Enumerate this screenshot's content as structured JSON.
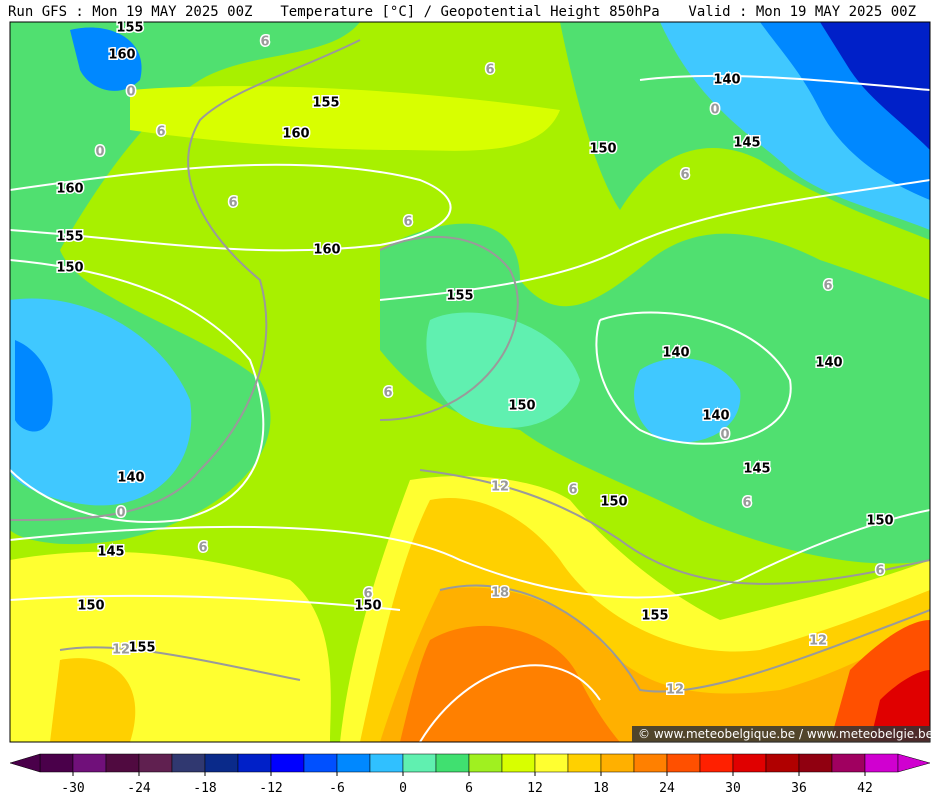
{
  "header": {
    "left": "Run GFS : Mon 19 MAY 2025 00Z",
    "center": "Temperature [°C] / Geopotential Height 850hPa",
    "right": "Valid : Mon 19 MAY 2025 00Z"
  },
  "map": {
    "height_contour_labels": [
      155,
      160,
      155,
      160,
      160,
      155,
      150,
      160,
      155,
      150,
      140,
      145,
      140,
      140,
      140,
      150,
      145,
      150,
      150,
      140,
      145,
      150,
      150,
      155,
      155
    ],
    "temperature_contour_labels": [
      6,
      6,
      0,
      6,
      0,
      0,
      6,
      6,
      6,
      6,
      6,
      0,
      12,
      6,
      6,
      0,
      6,
      6,
      6,
      18,
      12,
      12,
      12
    ],
    "watermark": "© www.meteobelgique.be / www.meteobelgie.be"
  },
  "legend": {
    "bins": [
      -33,
      -30,
      -27,
      -24,
      -21,
      -18,
      -15,
      -12,
      -9,
      -6,
      -3,
      0,
      3,
      6,
      9,
      12,
      15,
      18,
      21,
      24,
      27,
      30,
      33,
      36,
      39,
      42,
      45
    ],
    "colors": [
      "#4a004a",
      "#70107a",
      "#500a40",
      "#602050",
      "#303870",
      "#0a2a8a",
      "#0020c8",
      "#0000ff",
      "#0050ff",
      "#0088ff",
      "#30c0ff",
      "#60f0b0",
      "#40e070",
      "#a0f020",
      "#d8ff00",
      "#ffff30",
      "#ffd000",
      "#ffb000",
      "#ff8000",
      "#ff5000",
      "#ff2000",
      "#e00000",
      "#b00000",
      "#900010",
      "#a00060",
      "#d000d0"
    ],
    "ticks": [
      -30,
      -24,
      -18,
      -12,
      -6,
      0,
      6,
      12,
      18,
      24,
      30,
      36,
      42
    ]
  }
}
